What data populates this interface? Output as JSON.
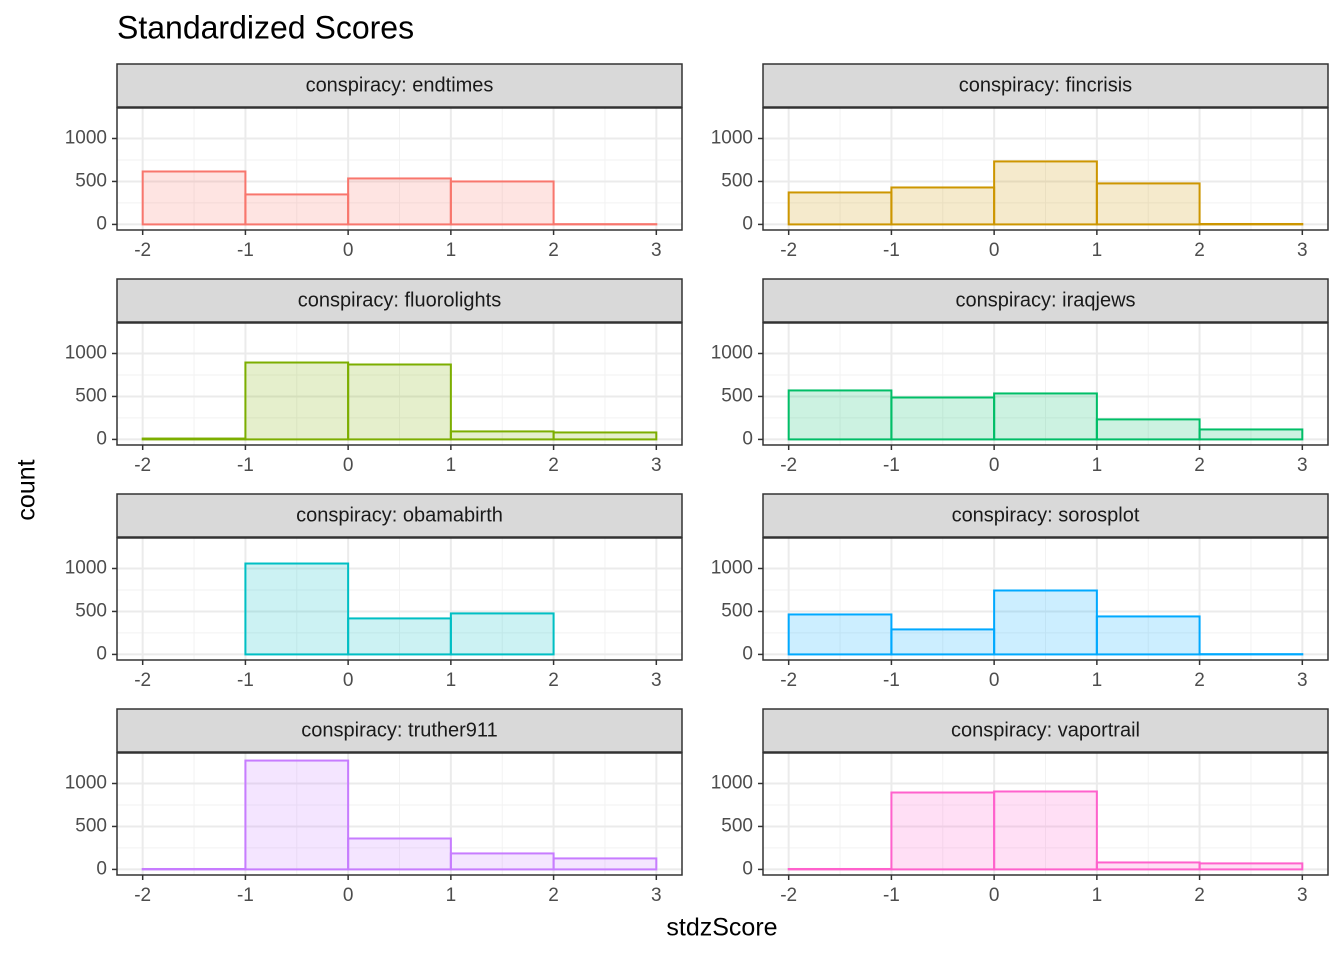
{
  "title": "Standardized Scores",
  "x_label": "stdzScore",
  "y_label": "count",
  "chart_data": [
    {
      "type": "histogram",
      "title": "conspiracy: endtimes",
      "color": "#F8766D",
      "bins": [
        -2,
        -1,
        0,
        1,
        2,
        3
      ],
      "values": [
        616,
        349,
        535,
        500,
        3
      ],
      "xlim": [
        -2.25,
        3.25
      ],
      "ylim": [
        -65,
        1355
      ],
      "xticks": [
        -2,
        -1,
        0,
        1,
        2,
        3
      ],
      "yticks": [
        0,
        500,
        1000
      ],
      "grid": true
    },
    {
      "type": "histogram",
      "title": "conspiracy: fincrisis",
      "color": "#CD9600",
      "bins": [
        -2,
        -1,
        0,
        1,
        2,
        3
      ],
      "values": [
        372,
        430,
        733,
        477,
        5
      ],
      "xlim": [
        -2.25,
        3.25
      ],
      "ylim": [
        -65,
        1355
      ],
      "xticks": [
        -2,
        -1,
        0,
        1,
        2,
        3
      ],
      "yticks": [
        0,
        500,
        1000
      ],
      "grid": true
    },
    {
      "type": "histogram",
      "title": "conspiracy: fluorolights",
      "color": "#7CAE00",
      "bins": [
        -2,
        -1,
        0,
        1,
        2,
        3
      ],
      "values": [
        10,
        895,
        872,
        93,
        81
      ],
      "xlim": [
        -2.25,
        3.25
      ],
      "ylim": [
        -65,
        1355
      ],
      "xticks": [
        -2,
        -1,
        0,
        1,
        2,
        3
      ],
      "yticks": [
        0,
        500,
        1000
      ],
      "grid": true
    },
    {
      "type": "histogram",
      "title": "conspiracy: iraqjews",
      "color": "#00BE67",
      "bins": [
        -2,
        -1,
        0,
        1,
        2,
        3
      ],
      "values": [
        570,
        488,
        535,
        233,
        116
      ],
      "xlim": [
        -2.25,
        3.25
      ],
      "ylim": [
        -65,
        1355
      ],
      "xticks": [
        -2,
        -1,
        0,
        1,
        2,
        3
      ],
      "yticks": [
        0,
        500,
        1000
      ],
      "grid": true
    },
    {
      "type": "histogram",
      "title": "conspiracy: obamabirth",
      "color": "#00BFC4",
      "bins": [
        -2,
        -1,
        0,
        1,
        2,
        3
      ],
      "values": [
        0,
        1058,
        419,
        477,
        0
      ],
      "xlim": [
        -2.25,
        3.25
      ],
      "ylim": [
        -65,
        1355
      ],
      "xticks": [
        -2,
        -1,
        0,
        1,
        2,
        3
      ],
      "yticks": [
        0,
        500,
        1000
      ],
      "grid": true
    },
    {
      "type": "histogram",
      "title": "conspiracy: sorosplot",
      "color": "#00A9FF",
      "bins": [
        -2,
        -1,
        0,
        1,
        2,
        3
      ],
      "values": [
        465,
        291,
        744,
        442,
        3
      ],
      "xlim": [
        -2.25,
        3.25
      ],
      "ylim": [
        -65,
        1355
      ],
      "xticks": [
        -2,
        -1,
        0,
        1,
        2,
        3
      ],
      "yticks": [
        0,
        500,
        1000
      ],
      "grid": true
    },
    {
      "type": "histogram",
      "title": "conspiracy: truther911",
      "color": "#C77CFF",
      "bins": [
        -2,
        -1,
        0,
        1,
        2,
        3
      ],
      "values": [
        5,
        1267,
        360,
        186,
        128
      ],
      "xlim": [
        -2.25,
        3.25
      ],
      "ylim": [
        -65,
        1355
      ],
      "xticks": [
        -2,
        -1,
        0,
        1,
        2,
        3
      ],
      "yticks": [
        0,
        500,
        1000
      ],
      "grid": true
    },
    {
      "type": "histogram",
      "title": "conspiracy: vaportrail",
      "color": "#FF61CC",
      "bins": [
        -2,
        -1,
        0,
        1,
        2,
        3
      ],
      "values": [
        5,
        895,
        907,
        81,
        70
      ],
      "xlim": [
        -2.25,
        3.25
      ],
      "ylim": [
        -65,
        1355
      ],
      "xticks": [
        -2,
        -1,
        0,
        1,
        2,
        3
      ],
      "yticks": [
        0,
        500,
        1000
      ],
      "grid": true
    }
  ]
}
